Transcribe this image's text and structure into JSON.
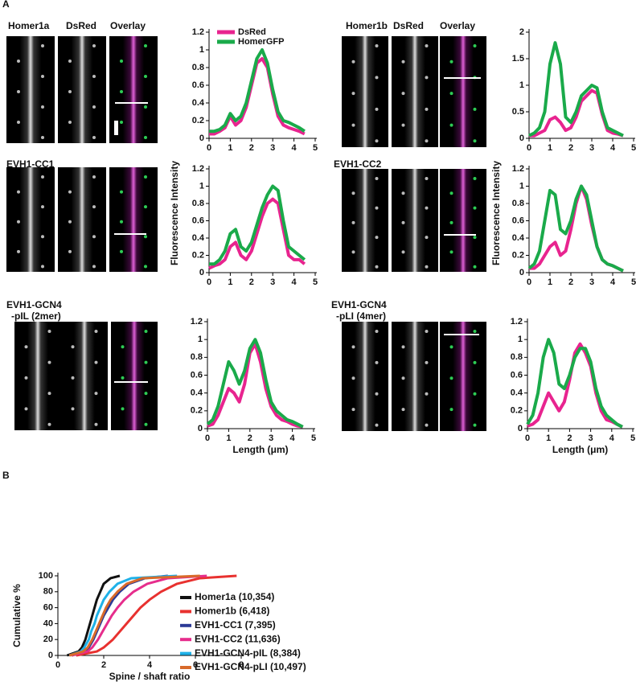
{
  "panel_labels": [
    "A",
    "B"
  ],
  "image_panels": [
    {
      "labels": [
        "Homer1a",
        "DsRed",
        "Overlay"
      ]
    },
    {
      "labels": [
        "Homer1b",
        "DsRed",
        "Overlay"
      ]
    },
    {
      "labels": [
        "EVH1-CC1"
      ]
    },
    {
      "labels": [
        "EVH1-CC2"
      ]
    },
    {
      "labels": [
        "EVH1-GCN4",
        "-pIL (2mer)"
      ]
    },
    {
      "labels": [
        "EVH1-GCN4",
        "-pLI (4mer)"
      ]
    }
  ],
  "chart_data": [
    {
      "type": "line",
      "xlim": [
        0,
        5
      ],
      "xticks": [
        0,
        1,
        2,
        3,
        4,
        5
      ],
      "ylim": [
        0,
        1.2
      ],
      "yticks": [
        0,
        0.2,
        0.4,
        0.6,
        0.8,
        1,
        1.2
      ],
      "x": [
        0,
        0.25,
        0.5,
        0.75,
        1,
        1.25,
        1.5,
        1.75,
        2,
        2.25,
        2.5,
        2.75,
        3,
        3.25,
        3.5,
        3.75,
        4,
        4.25,
        4.5
      ],
      "series": [
        {
          "name": "DsRed",
          "color": "#e8248f",
          "values": [
            0.05,
            0.05,
            0.08,
            0.12,
            0.25,
            0.15,
            0.2,
            0.35,
            0.6,
            0.85,
            0.9,
            0.8,
            0.5,
            0.25,
            0.15,
            0.12,
            0.1,
            0.08,
            0.05
          ]
        },
        {
          "name": "HomerGFP",
          "color": "#1aaa4a",
          "values": [
            0.08,
            0.08,
            0.1,
            0.15,
            0.28,
            0.2,
            0.25,
            0.4,
            0.65,
            0.9,
            1.0,
            0.85,
            0.55,
            0.3,
            0.2,
            0.18,
            0.15,
            0.12,
            0.08
          ]
        }
      ]
    },
    {
      "type": "line",
      "xlim": [
        0,
        5
      ],
      "xticks": [
        0,
        1,
        2,
        3,
        4,
        5
      ],
      "ylim": [
        0,
        2
      ],
      "yticks": [
        0,
        0.5,
        1,
        1.5,
        2
      ],
      "x": [
        0,
        0.25,
        0.5,
        0.75,
        1,
        1.25,
        1.5,
        1.75,
        2,
        2.25,
        2.5,
        2.75,
        3,
        3.25,
        3.5,
        3.75,
        4,
        4.25,
        4.5
      ],
      "series": [
        {
          "color": "#e8248f",
          "values": [
            0.05,
            0.05,
            0.1,
            0.15,
            0.35,
            0.4,
            0.3,
            0.15,
            0.2,
            0.4,
            0.7,
            0.8,
            0.9,
            0.85,
            0.45,
            0.15,
            0.1,
            0.08,
            0.05
          ]
        },
        {
          "color": "#1aaa4a",
          "values": [
            0.05,
            0.1,
            0.2,
            0.5,
            1.4,
            1.8,
            1.4,
            0.4,
            0.3,
            0.5,
            0.8,
            0.9,
            1.0,
            0.95,
            0.5,
            0.2,
            0.15,
            0.1,
            0.05
          ]
        }
      ]
    },
    {
      "type": "line",
      "xlim": [
        0,
        5
      ],
      "xticks": [
        0,
        1,
        2,
        3,
        4,
        5
      ],
      "ylim": [
        0,
        1.2
      ],
      "yticks": [
        0,
        0.2,
        0.4,
        0.6,
        0.8,
        1,
        1.2
      ],
      "ylabel": "Fluorescence Intensity",
      "x": [
        0,
        0.25,
        0.5,
        0.75,
        1,
        1.25,
        1.5,
        1.75,
        2,
        2.25,
        2.5,
        2.75,
        3,
        3.25,
        3.5,
        3.75,
        4,
        4.25,
        4.5
      ],
      "series": [
        {
          "color": "#e8248f",
          "values": [
            0.05,
            0.08,
            0.1,
            0.15,
            0.3,
            0.35,
            0.2,
            0.15,
            0.25,
            0.45,
            0.65,
            0.8,
            0.85,
            0.8,
            0.5,
            0.2,
            0.15,
            0.15,
            0.1
          ]
        },
        {
          "color": "#1aaa4a",
          "values": [
            0.1,
            0.1,
            0.15,
            0.25,
            0.45,
            0.5,
            0.3,
            0.25,
            0.35,
            0.55,
            0.75,
            0.9,
            1.0,
            0.95,
            0.6,
            0.3,
            0.25,
            0.2,
            0.15
          ]
        }
      ]
    },
    {
      "type": "line",
      "xlim": [
        0,
        5
      ],
      "xticks": [
        0,
        1,
        2,
        3,
        4,
        5
      ],
      "ylim": [
        0,
        1.2
      ],
      "yticks": [
        0,
        0.2,
        0.4,
        0.6,
        0.8,
        1,
        1.2
      ],
      "ylabel": "Fluorescence Intensity",
      "x": [
        0,
        0.25,
        0.5,
        0.75,
        1,
        1.25,
        1.5,
        1.75,
        2,
        2.25,
        2.5,
        2.75,
        3,
        3.25,
        3.5,
        3.75,
        4,
        4.25,
        4.5
      ],
      "series": [
        {
          "color": "#e8248f",
          "values": [
            0.05,
            0.05,
            0.1,
            0.2,
            0.3,
            0.35,
            0.2,
            0.25,
            0.5,
            0.8,
            1.0,
            0.85,
            0.55,
            0.3,
            0.15,
            0.1,
            0.08,
            0.05,
            0.02
          ]
        },
        {
          "color": "#1aaa4a",
          "values": [
            0.05,
            0.1,
            0.25,
            0.6,
            0.95,
            0.9,
            0.5,
            0.45,
            0.6,
            0.85,
            1.0,
            0.9,
            0.6,
            0.3,
            0.15,
            0.1,
            0.08,
            0.05,
            0.02
          ]
        }
      ]
    },
    {
      "type": "line",
      "xlim": [
        0,
        5
      ],
      "xticks": [
        0,
        1,
        2,
        3,
        4,
        5
      ],
      "ylim": [
        0,
        1.2
      ],
      "yticks": [
        0,
        0.2,
        0.4,
        0.6,
        0.8,
        1,
        1.2
      ],
      "xlabel": "Length (μm)",
      "x": [
        0,
        0.25,
        0.5,
        0.75,
        1,
        1.25,
        1.5,
        1.75,
        2,
        2.25,
        2.5,
        2.75,
        3,
        3.25,
        3.5,
        3.75,
        4,
        4.25,
        4.5
      ],
      "series": [
        {
          "color": "#e8248f",
          "values": [
            0.03,
            0.05,
            0.15,
            0.3,
            0.45,
            0.4,
            0.3,
            0.5,
            0.85,
            0.95,
            0.75,
            0.45,
            0.25,
            0.15,
            0.1,
            0.08,
            0.05,
            0.03,
            0.02
          ]
        },
        {
          "color": "#1aaa4a",
          "values": [
            0.05,
            0.1,
            0.25,
            0.5,
            0.75,
            0.65,
            0.5,
            0.65,
            0.9,
            1.0,
            0.85,
            0.55,
            0.3,
            0.2,
            0.15,
            0.1,
            0.08,
            0.05,
            0.02
          ]
        }
      ]
    },
    {
      "type": "line",
      "xlim": [
        0,
        5
      ],
      "xticks": [
        0,
        1,
        2,
        3,
        4,
        5
      ],
      "ylim": [
        0,
        1.2
      ],
      "yticks": [
        0,
        0.2,
        0.4,
        0.6,
        0.8,
        1,
        1.2
      ],
      "xlabel": "Length (μm)",
      "x": [
        0,
        0.25,
        0.5,
        0.75,
        1,
        1.25,
        1.5,
        1.75,
        2,
        2.25,
        2.5,
        2.75,
        3,
        3.25,
        3.5,
        3.75,
        4,
        4.25,
        4.5
      ],
      "series": [
        {
          "color": "#e8248f",
          "values": [
            0.03,
            0.05,
            0.1,
            0.25,
            0.4,
            0.3,
            0.2,
            0.3,
            0.55,
            0.85,
            0.95,
            0.85,
            0.7,
            0.4,
            0.2,
            0.1,
            0.08,
            0.05,
            0.02
          ]
        },
        {
          "color": "#1aaa4a",
          "values": [
            0.05,
            0.15,
            0.4,
            0.8,
            1.0,
            0.85,
            0.5,
            0.45,
            0.6,
            0.8,
            0.9,
            0.9,
            0.75,
            0.45,
            0.25,
            0.15,
            0.1,
            0.05,
            0.02
          ]
        }
      ]
    },
    {
      "type": "line",
      "xlim": [
        0,
        8
      ],
      "xticks": [
        0,
        2,
        4,
        6,
        8
      ],
      "ylim": [
        0,
        100
      ],
      "yticks": [
        0,
        20,
        40,
        60,
        80,
        100
      ],
      "xlabel": "Spine / shaft ratio",
      "ylabel": "Cumulative %",
      "series": [
        {
          "name": "Homer1a (10,354)",
          "color": "#111111",
          "x": [
            0.4,
            0.9,
            1.05,
            1.2,
            1.3,
            1.4,
            1.5,
            1.6,
            1.7,
            1.85,
            2.0,
            2.3,
            2.7
          ],
          "values": [
            0,
            5,
            10,
            20,
            30,
            40,
            50,
            60,
            70,
            80,
            90,
            97,
            100
          ]
        },
        {
          "name": "Homer1b (6,418)",
          "color": "#e8312f",
          "x": [
            0.8,
            1.7,
            2.0,
            2.4,
            2.7,
            3.0,
            3.3,
            3.6,
            4.0,
            4.5,
            5.2,
            6.2,
            7.8
          ],
          "values": [
            0,
            5,
            10,
            20,
            30,
            40,
            50,
            60,
            70,
            80,
            90,
            97,
            100
          ]
        },
        {
          "name": "EVH1-CC1 (7,395)",
          "color": "#2b3a96",
          "x": [
            0.6,
            1.2,
            1.35,
            1.55,
            1.7,
            1.85,
            2.0,
            2.2,
            2.4,
            2.7,
            3.1,
            3.8,
            4.8
          ],
          "values": [
            0,
            5,
            10,
            20,
            30,
            40,
            50,
            60,
            70,
            80,
            90,
            97,
            100
          ]
        },
        {
          "name": "EVH1-CC2 (11,636)",
          "color": "#e62d8c",
          "x": [
            0.6,
            1.3,
            1.5,
            1.75,
            1.95,
            2.15,
            2.35,
            2.6,
            2.9,
            3.3,
            3.9,
            4.8,
            6.5
          ],
          "values": [
            0,
            5,
            10,
            20,
            30,
            40,
            50,
            60,
            70,
            80,
            90,
            97,
            100
          ]
        },
        {
          "name": "EVH1-GCN4-pIL (8,384)",
          "color": "#1fb1e8",
          "x": [
            0.5,
            1.0,
            1.15,
            1.35,
            1.45,
            1.6,
            1.7,
            1.85,
            2.0,
            2.25,
            2.6,
            3.2,
            5.2
          ],
          "values": [
            0,
            5,
            10,
            20,
            30,
            40,
            50,
            60,
            70,
            80,
            90,
            97,
            100
          ]
        },
        {
          "name": "EVH1-GCN4-pLI (10,497)",
          "color": "#d86a2a",
          "x": [
            0.5,
            1.1,
            1.3,
            1.5,
            1.65,
            1.8,
            1.95,
            2.1,
            2.3,
            2.6,
            3.0,
            3.7,
            6.2
          ],
          "values": [
            0,
            5,
            10,
            20,
            30,
            40,
            50,
            60,
            70,
            80,
            90,
            97,
            100
          ]
        }
      ]
    }
  ]
}
